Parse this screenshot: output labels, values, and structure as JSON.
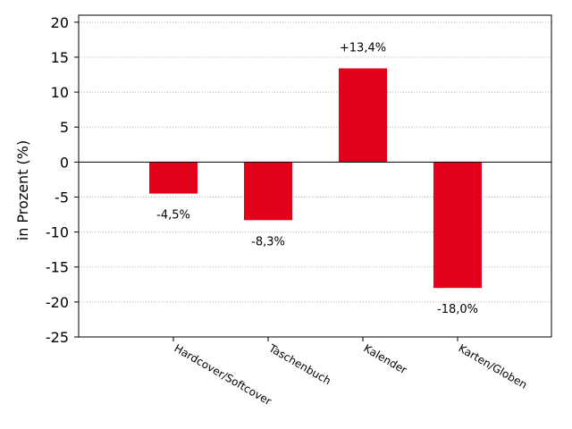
{
  "chart_data": {
    "type": "bar",
    "categories": [
      "Hardcover/Softcover",
      "Taschenbuch",
      "Kalender",
      "Karten/Globen"
    ],
    "values": [
      -4.5,
      -8.3,
      13.4,
      -18.0
    ],
    "data_labels": [
      "-4,5%",
      "-8,3%",
      "+13,4%",
      "-18,0%"
    ],
    "ylabel": "in Prozent (%)",
    "xlabel": "",
    "title": "",
    "ylim": [
      -25,
      21
    ],
    "yticks": [
      20,
      15,
      10,
      5,
      0,
      -5,
      -10,
      -15,
      -20,
      -25
    ],
    "ytick_labels": [
      "20",
      "15",
      "10",
      "5",
      "0",
      "-5",
      "-10",
      "-15",
      "-20",
      "-25"
    ],
    "grid": true,
    "bar_color": "#e2001a"
  }
}
